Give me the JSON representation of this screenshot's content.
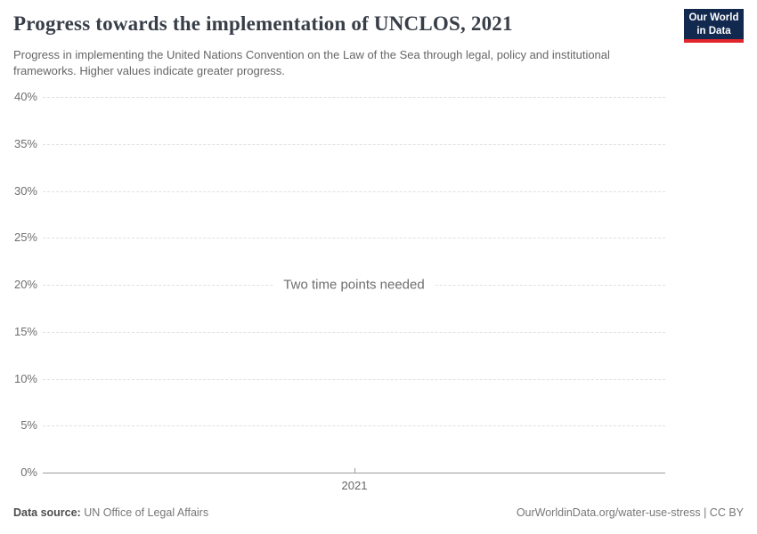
{
  "header": {
    "title": "Progress towards the implementation of UNCLOS, 2021",
    "subtitle": "Progress in implementing the United Nations Convention on the Law of the Sea through legal, policy and institutional frameworks. Higher values indicate greater progress.",
    "logo": {
      "line1": "Our World",
      "line2": "in Data"
    }
  },
  "chart_data": {
    "type": "line",
    "title": "Progress towards the implementation of UNCLOS, 2021",
    "series": [],
    "empty_message": "Two time points needed",
    "xlabel": "",
    "ylabel": "",
    "ylim": [
      0,
      40
    ],
    "grid": "horizontal-dashed",
    "yticks": [
      {
        "label": "40%",
        "value": 40
      },
      {
        "label": "35%",
        "value": 35
      },
      {
        "label": "30%",
        "value": 30
      },
      {
        "label": "25%",
        "value": 25
      },
      {
        "label": "20%",
        "value": 20
      },
      {
        "label": "15%",
        "value": 15
      },
      {
        "label": "10%",
        "value": 10
      },
      {
        "label": "5%",
        "value": 5
      },
      {
        "label": "0%",
        "value": 0
      }
    ],
    "xticks": [
      {
        "label": "2021"
      }
    ]
  },
  "footer": {
    "source_label": "Data source:",
    "source_value": " UN Office of Legal Affairs",
    "credit": "OurWorldinData.org/water-use-stress | CC BY"
  },
  "colors": {
    "logo_navy": "#12294f",
    "logo_red": "#e0262c",
    "title_text": "#383e48",
    "subtitle_text": "#666666",
    "gridline": "#e0e0e0",
    "axis_line": "#9a9a9a",
    "tick_text": "#6e6e6e",
    "background": "#ffffff"
  }
}
